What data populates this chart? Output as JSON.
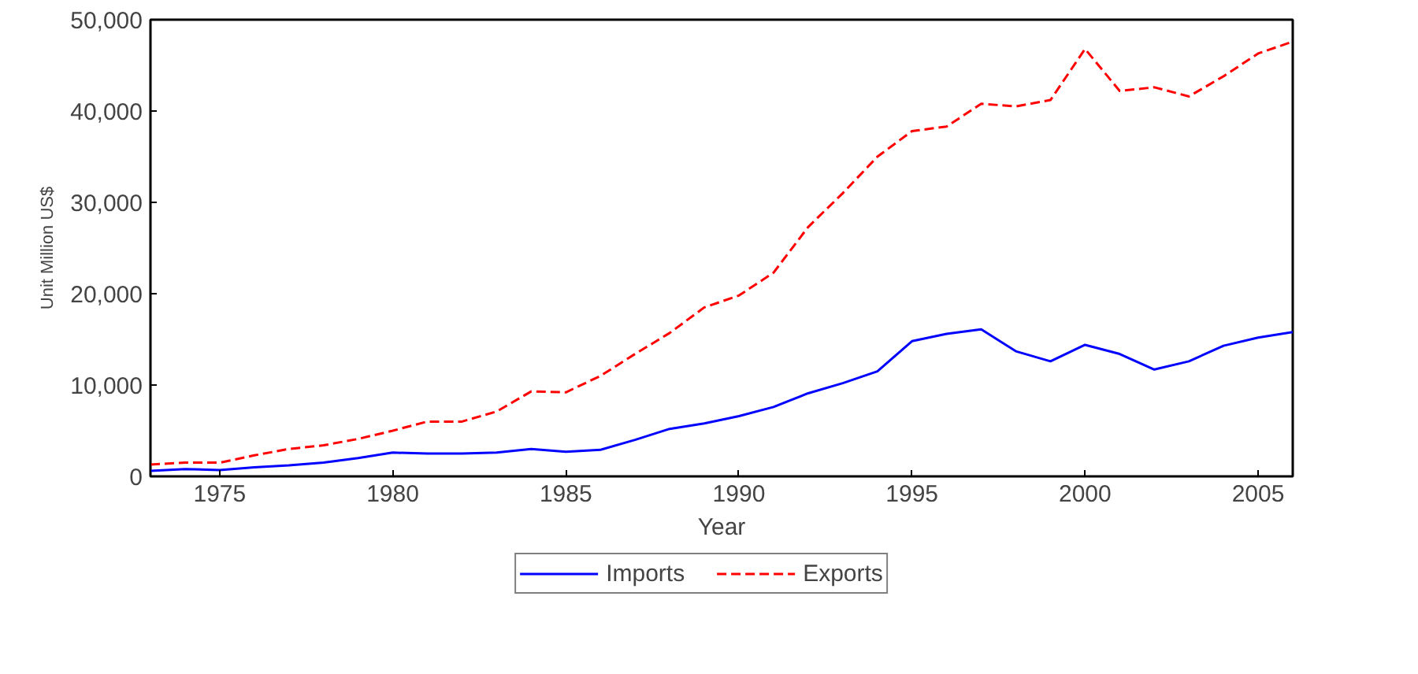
{
  "chart_data": {
    "type": "line",
    "xlabel": "Year",
    "ylabel": "Unit Million US$",
    "x": [
      1973,
      1974,
      1975,
      1976,
      1977,
      1978,
      1979,
      1980,
      1981,
      1982,
      1983,
      1984,
      1985,
      1986,
      1987,
      1988,
      1989,
      1990,
      1991,
      1992,
      1993,
      1994,
      1995,
      1996,
      1997,
      1998,
      1999,
      2000,
      2001,
      2002,
      2003,
      2004,
      2005,
      2006
    ],
    "series": [
      {
        "name": "Imports",
        "color": "#0000ff",
        "line_style": "solid",
        "values": [
          600,
          800,
          700,
          1000,
          1200,
          1500,
          2000,
          2600,
          2500,
          2500,
          2600,
          3000,
          2700,
          2900,
          4000,
          5200,
          5800,
          6600,
          7600,
          9100,
          10200,
          11500,
          14800,
          15600,
          16100,
          13700,
          12600,
          14400,
          13400,
          11700,
          12600,
          14300,
          15200,
          15800
        ]
      },
      {
        "name": "Exports",
        "color": "#ff0000",
        "line_style": "dashed",
        "values": [
          1300,
          1500,
          1500,
          2300,
          3000,
          3400,
          4100,
          5000,
          6000,
          6000,
          7100,
          9300,
          9200,
          11000,
          13400,
          15700,
          18500,
          19800,
          22300,
          27300,
          31000,
          35000,
          37800,
          38300,
          40800,
          40500,
          41200,
          46800,
          42200,
          42600,
          41600,
          43800,
          46300,
          47600
        ]
      }
    ],
    "xlim": [
      1973,
      2006
    ],
    "ylim": [
      0,
      50000
    ],
    "xticks": [
      1975,
      1980,
      1985,
      1990,
      1995,
      2000,
      2005
    ],
    "yticks": [
      {
        "value": 0,
        "label": "0"
      },
      {
        "value": 10000,
        "label": "10,000"
      },
      {
        "value": 20000,
        "label": "20,000"
      },
      {
        "value": 30000,
        "label": "30,000"
      },
      {
        "value": 40000,
        "label": "40,000"
      },
      {
        "value": 50000,
        "label": "50,000"
      }
    ],
    "grid": false,
    "legend": "bottom",
    "marker": "none"
  }
}
